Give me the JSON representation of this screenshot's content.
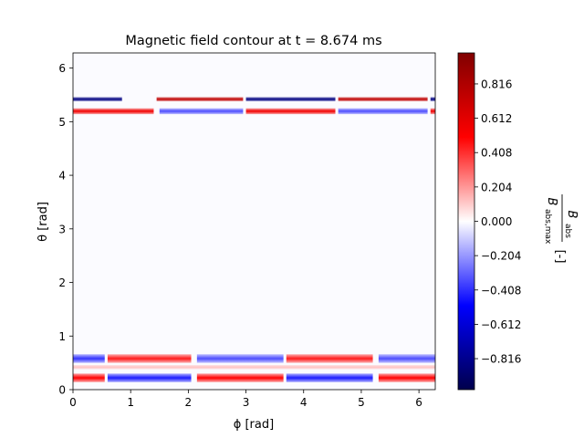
{
  "chart_data": {
    "type": "heatmap",
    "title": "Magnetic field contour at t = 8.674 ms",
    "xlabel": "ϕ [rad]",
    "ylabel": "θ [rad]",
    "colorbar_label": {
      "numerator": "B",
      "numerator_sub": "abs",
      "denominator": "B",
      "denominator_sub": "abs,max",
      "unit": "[-]"
    },
    "xlim": [
      0,
      6.283
    ],
    "ylim": [
      0,
      6.283
    ],
    "clim": [
      -1,
      1
    ],
    "colormap": "seismic",
    "x_ticks": [
      {
        "value": 0,
        "label": "0"
      },
      {
        "value": 1,
        "label": "1"
      },
      {
        "value": 2,
        "label": "2"
      },
      {
        "value": 3,
        "label": "3"
      },
      {
        "value": 4,
        "label": "4"
      },
      {
        "value": 5,
        "label": "5"
      },
      {
        "value": 6,
        "label": "6"
      }
    ],
    "y_ticks": [
      {
        "value": 0,
        "label": "0"
      },
      {
        "value": 1,
        "label": "1"
      },
      {
        "value": 2,
        "label": "2"
      },
      {
        "value": 3,
        "label": "3"
      },
      {
        "value": 4,
        "label": "4"
      },
      {
        "value": 5,
        "label": "5"
      },
      {
        "value": 6,
        "label": "6"
      }
    ],
    "colorbar_ticks": [
      {
        "value": 0.816,
        "label": "0.816"
      },
      {
        "value": 0.612,
        "label": "0.612"
      },
      {
        "value": 0.408,
        "label": "0.408"
      },
      {
        "value": 0.204,
        "label": "0.204"
      },
      {
        "value": 0.0,
        "label": "0.000"
      },
      {
        "value": -0.204,
        "label": "−0.204"
      },
      {
        "value": -0.408,
        "label": "−0.408"
      },
      {
        "value": -0.612,
        "label": "−0.612"
      },
      {
        "value": -0.816,
        "label": "−0.816"
      }
    ],
    "bands": [
      {
        "theta": [
          5.38,
          5.46
        ],
        "segments": [
          {
            "phi": [
              0.0,
              0.85
            ],
            "value": -0.85
          },
          {
            "phi": [
              1.45,
              2.95
            ],
            "value": 0.75
          },
          {
            "phi": [
              3.0,
              4.55
            ],
            "value": -0.85
          },
          {
            "phi": [
              4.6,
              6.15
            ],
            "value": 0.75
          },
          {
            "phi": [
              6.2,
              6.283
            ],
            "value": -0.85
          }
        ]
      },
      {
        "theta": [
          5.14,
          5.25
        ],
        "segments": [
          {
            "phi": [
              0.0,
              1.4
            ],
            "value": 0.55
          },
          {
            "phi": [
              1.5,
              2.95
            ],
            "value": -0.35
          },
          {
            "phi": [
              3.0,
              4.55
            ],
            "value": 0.55
          },
          {
            "phi": [
              4.6,
              6.15
            ],
            "value": -0.35
          },
          {
            "phi": [
              6.2,
              6.283
            ],
            "value": 0.55
          }
        ]
      },
      {
        "theta": [
          0.5,
          0.66
        ],
        "segments": [
          {
            "phi": [
              0.0,
              0.55
            ],
            "value": -0.4
          },
          {
            "phi": [
              0.6,
              2.05
            ],
            "value": 0.45
          },
          {
            "phi": [
              2.15,
              3.65
            ],
            "value": -0.35
          },
          {
            "phi": [
              3.7,
              5.2
            ],
            "value": 0.45
          },
          {
            "phi": [
              5.3,
              6.283
            ],
            "value": -0.35
          }
        ]
      },
      {
        "theta": [
          0.38,
          0.46
        ],
        "segments": [
          {
            "phi": [
              0.0,
              6.283
            ],
            "value": 0.12
          }
        ]
      },
      {
        "theta": [
          0.14,
          0.3
        ],
        "segments": [
          {
            "phi": [
              0.0,
              0.55
            ],
            "value": 0.5
          },
          {
            "phi": [
              0.6,
              2.05
            ],
            "value": -0.45
          },
          {
            "phi": [
              2.15,
              3.65
            ],
            "value": 0.5
          },
          {
            "phi": [
              3.7,
              5.2
            ],
            "value": -0.45
          },
          {
            "phi": [
              5.3,
              6.283
            ],
            "value": 0.5
          }
        ]
      }
    ]
  }
}
